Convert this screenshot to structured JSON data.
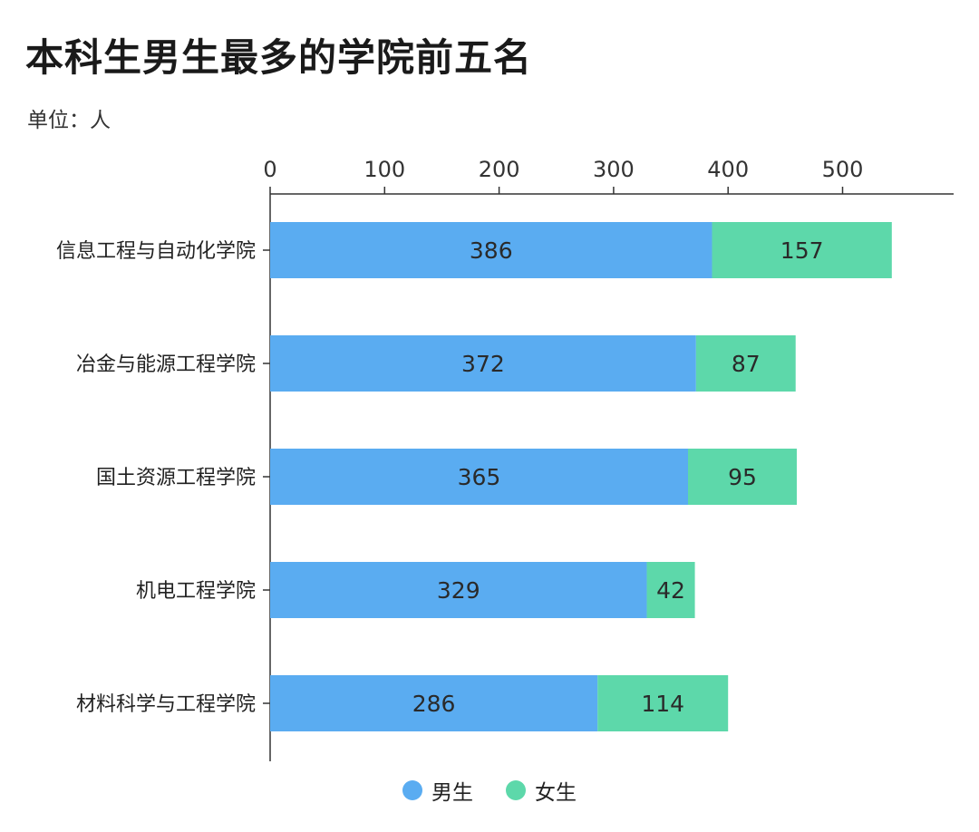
{
  "chart_data": {
    "type": "bar",
    "orientation": "horizontal",
    "stacked": true,
    "title": "本科生男生最多的学院前五名",
    "unit_label": "单位：人",
    "categories": [
      "信息工程与自动化学院",
      "冶金与能源工程学院",
      "国土资源工程学院",
      "机电工程学院",
      "材料科学与工程学院"
    ],
    "series": [
      {
        "name": "男生",
        "values": [
          386,
          372,
          365,
          329,
          286
        ],
        "color": "#5aacf1"
      },
      {
        "name": "女生",
        "values": [
          157,
          87,
          95,
          42,
          114
        ],
        "color": "#5dd8aa"
      }
    ],
    "xlim": [
      0,
      600
    ],
    "x_ticks": [
      0,
      100,
      200,
      300,
      400,
      500
    ],
    "x_tick_labels": [
      "0",
      "100",
      "200",
      "300",
      "400",
      "500"
    ],
    "x_axis_position": "top",
    "legend_position": "bottom",
    "grid": false,
    "data_labels": true
  }
}
